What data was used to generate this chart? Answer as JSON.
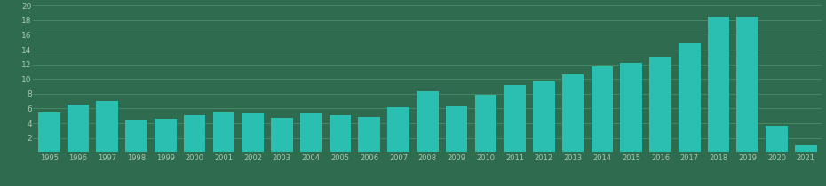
{
  "years": [
    "1995",
    "1996",
    "1997",
    "1998",
    "1999",
    "2000",
    "2001",
    "2002",
    "2003",
    "2004",
    "2005",
    "2006",
    "2007",
    "2008",
    "2009",
    "2010",
    "2011",
    "2012",
    "2013",
    "2014",
    "2015",
    "2016",
    "2017",
    "2018",
    "2019",
    "2020",
    "2021"
  ],
  "values": [
    5.5,
    6.5,
    7.0,
    4.4,
    4.6,
    5.1,
    5.5,
    5.3,
    4.7,
    5.3,
    5.1,
    4.9,
    6.2,
    8.3,
    6.3,
    7.9,
    9.2,
    9.7,
    10.6,
    11.7,
    12.2,
    13.0,
    15.0,
    18.5,
    18.5,
    3.7,
    1.0
  ],
  "bar_color": "#2ABFB0",
  "bg_color": "#2E6B4F",
  "grid_color": "#4A8C6A",
  "text_color": "#A8C8B0",
  "ylim": [
    0,
    20
  ],
  "yticks": [
    2,
    4,
    6,
    8,
    10,
    12,
    14,
    16,
    18,
    20
  ]
}
